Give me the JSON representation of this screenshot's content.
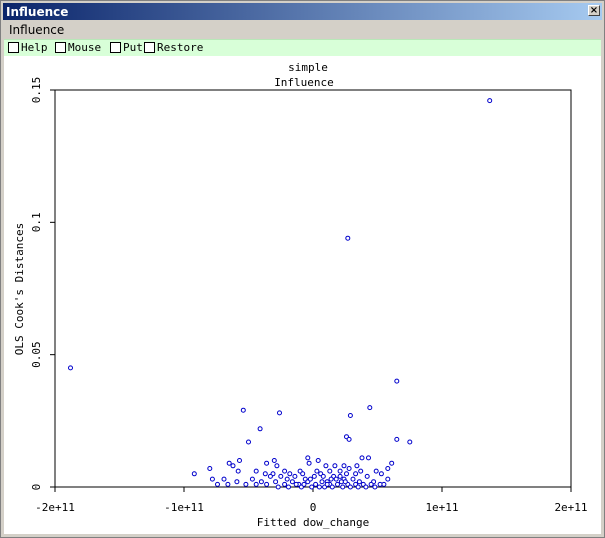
{
  "window": {
    "title": "Influence",
    "close_glyph": "×"
  },
  "menu": {
    "items": [
      "Influence"
    ]
  },
  "toolbar": {
    "items": [
      "Help",
      "Mouse",
      "Put",
      "Restore"
    ]
  },
  "chart_data": {
    "type": "scatter",
    "title": "simple",
    "subtitle": "Influence",
    "xlabel": "Fitted dow_change",
    "ylabel": "OLS Cook's Distances",
    "xlim": [
      -200000000000,
      200000000000
    ],
    "ylim": [
      0,
      0.15
    ],
    "xticks": [
      -200000000000,
      -100000000000,
      0,
      100000000000,
      200000000000
    ],
    "xtick_labels": [
      "-2e+11",
      "-1e+11",
      "0",
      "1e+11",
      "2e+11"
    ],
    "yticks": [
      0,
      0.05,
      0.1,
      0.15
    ],
    "ytick_labels": [
      "0",
      "0.05",
      "0.1",
      "0.15"
    ],
    "marker_color": "#0000cc",
    "marker": "hollow-circle",
    "points": [
      [
        137000000000,
        0.146
      ],
      [
        27000000000,
        0.094
      ],
      [
        -188000000000,
        0.045
      ],
      [
        65000000000,
        0.04
      ],
      [
        44000000000,
        0.03
      ],
      [
        -54000000000,
        0.029
      ],
      [
        -26000000000,
        0.028
      ],
      [
        29000000000,
        0.027
      ],
      [
        -41000000000,
        0.022
      ],
      [
        26000000000,
        0.019
      ],
      [
        28000000000,
        0.018
      ],
      [
        65000000000,
        0.018
      ],
      [
        75000000000,
        0.017
      ],
      [
        -50000000000,
        0.017
      ],
      [
        -4000000000,
        0.011
      ],
      [
        38000000000,
        0.011
      ],
      [
        43000000000,
        0.011
      ],
      [
        -57000000000,
        0.01
      ],
      [
        -36000000000,
        0.009
      ],
      [
        -30000000000,
        0.01
      ],
      [
        -3000000000,
        0.009
      ],
      [
        4000000000,
        0.01
      ],
      [
        -65000000000,
        0.009
      ],
      [
        -62000000000,
        0.008
      ],
      [
        -28000000000,
        0.008
      ],
      [
        10000000000,
        0.008
      ],
      [
        17000000000,
        0.008
      ],
      [
        24000000000,
        0.008
      ],
      [
        34000000000,
        0.008
      ],
      [
        61000000000,
        0.009
      ],
      [
        -80000000000,
        0.007
      ],
      [
        -58000000000,
        0.006
      ],
      [
        -44000000000,
        0.006
      ],
      [
        -22000000000,
        0.006
      ],
      [
        -10000000000,
        0.006
      ],
      [
        3000000000,
        0.006
      ],
      [
        13000000000,
        0.006
      ],
      [
        21000000000,
        0.006
      ],
      [
        28000000000,
        0.007
      ],
      [
        37000000000,
        0.006
      ],
      [
        49000000000,
        0.006
      ],
      [
        58000000000,
        0.007
      ],
      [
        -92000000000,
        0.005
      ],
      [
        -37000000000,
        0.005
      ],
      [
        -31000000000,
        0.005
      ],
      [
        -18000000000,
        0.005
      ],
      [
        -8000000000,
        0.005
      ],
      [
        6000000000,
        0.005
      ],
      [
        16000000000,
        0.004
      ],
      [
        33000000000,
        0.005
      ],
      [
        53000000000,
        0.005
      ],
      [
        -78000000000,
        0.003
      ],
      [
        -69000000000,
        0.003
      ],
      [
        -47000000000,
        0.003
      ],
      [
        -40000000000,
        0.002
      ],
      [
        -33000000000,
        0.004
      ],
      [
        -25000000000,
        0.004
      ],
      [
        -20000000000,
        0.003
      ],
      [
        -14000000000,
        0.004
      ],
      [
        -6000000000,
        0.003
      ],
      [
        1000000000,
        0.004
      ],
      [
        8000000000,
        0.004
      ],
      [
        11000000000,
        0.002
      ],
      [
        18000000000,
        0.003
      ],
      [
        24000000000,
        0.003
      ],
      [
        31000000000,
        0.003
      ],
      [
        36000000000,
        0.002
      ],
      [
        42000000000,
        0.004
      ],
      [
        47000000000,
        0.002
      ],
      [
        58000000000,
        0.003
      ],
      [
        -59000000000,
        0.002
      ],
      [
        -52000000000,
        0.001
      ],
      [
        -44000000000,
        0.001
      ],
      [
        -36000000000,
        0.001
      ],
      [
        -29000000000,
        0.002
      ],
      [
        -22000000000,
        0.001
      ],
      [
        -16000000000,
        0.002
      ],
      [
        -11000000000,
        0.001
      ],
      [
        -4000000000,
        0.002
      ],
      [
        2000000000,
        0.001
      ],
      [
        7000000000,
        0.002
      ],
      [
        13000000000,
        0.001
      ],
      [
        19000000000,
        0.001
      ],
      [
        22000000000,
        0.002
      ],
      [
        27000000000,
        0.001
      ],
      [
        33000000000,
        0.001
      ],
      [
        39000000000,
        0.001
      ],
      [
        45000000000,
        0.001
      ],
      [
        52000000000,
        0.001
      ],
      [
        -74000000000,
        0.001
      ],
      [
        -66000000000,
        0.001
      ],
      [
        -27000000000,
        0.0
      ],
      [
        -19000000000,
        0.0
      ],
      [
        -9000000000,
        0.0
      ],
      [
        -1000000000,
        0.0
      ],
      [
        5000000000,
        0.0
      ],
      [
        9000000000,
        0.0
      ],
      [
        15000000000,
        0.0
      ],
      [
        23000000000,
        0.0
      ],
      [
        29000000000,
        0.0
      ],
      [
        35000000000,
        0.0
      ],
      [
        41000000000,
        0.0
      ],
      [
        48000000000,
        0.0
      ],
      [
        55000000000,
        0.001
      ],
      [
        -13000000000,
        0.001
      ],
      [
        -7000000000,
        0.001
      ],
      [
        11000000000,
        0.001
      ],
      [
        25000000000,
        0.002
      ],
      [
        -2000000000,
        0.003
      ],
      [
        14000000000,
        0.003
      ],
      [
        21000000000,
        0.004
      ],
      [
        26000000000,
        0.005
      ]
    ]
  }
}
